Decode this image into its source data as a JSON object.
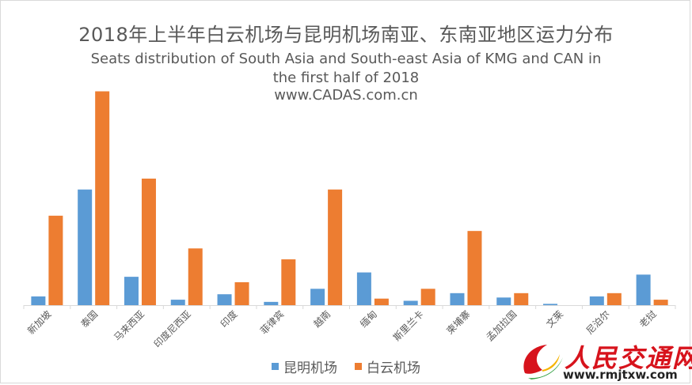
{
  "chart_data": {
    "type": "bar",
    "title": "2018年上半年白云机场与昆明机场南亚、东南亚地区运力分布",
    "subtitle_lines": [
      "Seats distribution of South Asia and South-east Asia of KMG and CAN in",
      "the first half of 2018",
      "www.CADAS.com.cn"
    ],
    "categories": [
      "新加坡",
      "泰国",
      "马来西亚",
      "印度尼西亚",
      "印度",
      "菲律宾",
      "越南",
      "缅甸",
      "斯里兰卡",
      "柬埔寨",
      "孟加拉国",
      "文莱",
      "尼泊尔",
      "老挝"
    ],
    "series": [
      {
        "name": "昆明机场",
        "color": "#5b9bd5",
        "values": [
          4,
          53,
          13,
          2.5,
          5,
          1.5,
          7.5,
          15,
          2,
          5.5,
          3.5,
          0.6,
          4,
          14
        ]
      },
      {
        "name": "白云机场",
        "color": "#ed7d31",
        "values": [
          41,
          98,
          58,
          26,
          10.5,
          21,
          53,
          3,
          7.5,
          34,
          5.5,
          0,
          5.5,
          2.5
        ]
      }
    ],
    "ylim": [
      0,
      100
    ],
    "grid": false,
    "y_axis_visible": false,
    "legend_position": "bottom"
  },
  "watermark": {
    "logo_text": "人民交通网",
    "url": "www.rmjtxw.com"
  }
}
